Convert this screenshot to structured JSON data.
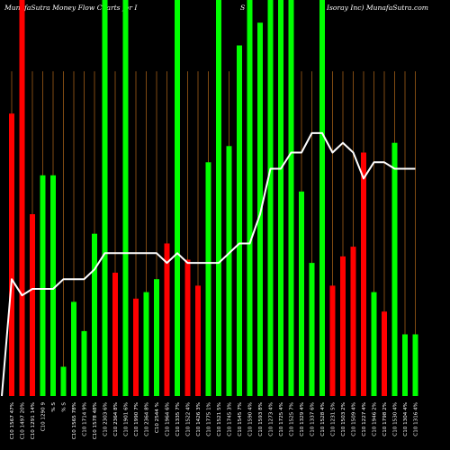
{
  "title": {
    "left": "MunafaSutra  Money Flow  Charts for I",
    "middle": "S",
    "right": "Isoray Inc) MunafaSutra.com"
  },
  "colors": {
    "background": "#000000",
    "grid": "#7f4a12",
    "text": "#ffffff"
  },
  "chart_data": {
    "type": "bar",
    "ylim": [
      0,
      1.22
    ],
    "grid": "vertical",
    "categories": [
      "C10 1567 47%",
      "C10 1497 20%",
      "C10 1291 14%",
      "C10 1290 9",
      "% S",
      "% S",
      "C10 1565 78%",
      "C10 1714 9%",
      "C10 1578 48%",
      "C10 2303 6%",
      "C10 2364 8%",
      "C10 1901 6%",
      "C10 1990 7%",
      "C10 2364 8%",
      "C10 2544 %",
      "C10 1964 6%",
      "C10 1335 7%",
      "C10 1522 4%",
      "C10 1426 3%",
      "C10 1775 1%",
      "C10 1521 5%",
      "C10 1745 3%",
      "C10 1545 7%",
      "C10 1590 4%",
      "C10 1593 8%",
      "C10 1273 4%",
      "C10 1725 4%",
      "C10 1525 7%",
      "C10 1329 4%",
      "C10 1337 6%",
      "C10 1528 4%",
      "C10 1231 5%",
      "C10 1503 2%",
      "C10 1509 4%",
      "C10 1227 4%",
      "C10 1946 2%",
      "C10 1798 2%",
      "C10 1530 4%",
      "C10 1304 4%",
      "C10 1316 4%"
    ],
    "bars": {
      "values": [
        0.87,
        1.22,
        0.56,
        0.68,
        0.68,
        0.09,
        0.29,
        0.2,
        0.5,
        1.22,
        0.38,
        1.22,
        0.3,
        0.32,
        0.36,
        0.47,
        1.22,
        0.42,
        0.34,
        0.72,
        1.22,
        0.77,
        1.08,
        1.22,
        1.15,
        1.22,
        1.22,
        1.22,
        0.63,
        0.41,
        1.22,
        0.34,
        0.43,
        0.46,
        0.75,
        0.32,
        0.26,
        0.78,
        0.19,
        0.19
      ],
      "colors": [
        "#ff0000",
        "#ff0000",
        "#ff0000",
        "#00ff00",
        "#00ff00",
        "#00ff00",
        "#00ff00",
        "#00ff00",
        "#00ff00",
        "#00ff00",
        "#ff0000",
        "#00ff00",
        "#ff0000",
        "#00ff00",
        "#00ff00",
        "#ff0000",
        "#00ff00",
        "#ff0000",
        "#ff0000",
        "#00ff00",
        "#00ff00",
        "#00ff00",
        "#00ff00",
        "#00ff00",
        "#00ff00",
        "#00ff00",
        "#00ff00",
        "#00ff00",
        "#00ff00",
        "#00ff00",
        "#00ff00",
        "#ff0000",
        "#ff0000",
        "#ff0000",
        "#ff0000",
        "#00ff00",
        "#ff0000",
        "#00ff00",
        "#00ff00",
        "#00ff00"
      ]
    },
    "line": {
      "color": "#ffffff",
      "values": [
        0.36,
        0.31,
        0.33,
        0.33,
        0.33,
        0.36,
        0.36,
        0.36,
        0.39,
        0.44,
        0.44,
        0.44,
        0.44,
        0.44,
        0.44,
        0.41,
        0.44,
        0.41,
        0.41,
        0.41,
        0.41,
        0.44,
        0.47,
        0.47,
        0.56,
        0.7,
        0.7,
        0.75,
        0.75,
        0.81,
        0.81,
        0.75,
        0.78,
        0.75,
        0.67,
        0.72,
        0.72,
        0.7,
        0.7,
        0.7
      ]
    }
  }
}
